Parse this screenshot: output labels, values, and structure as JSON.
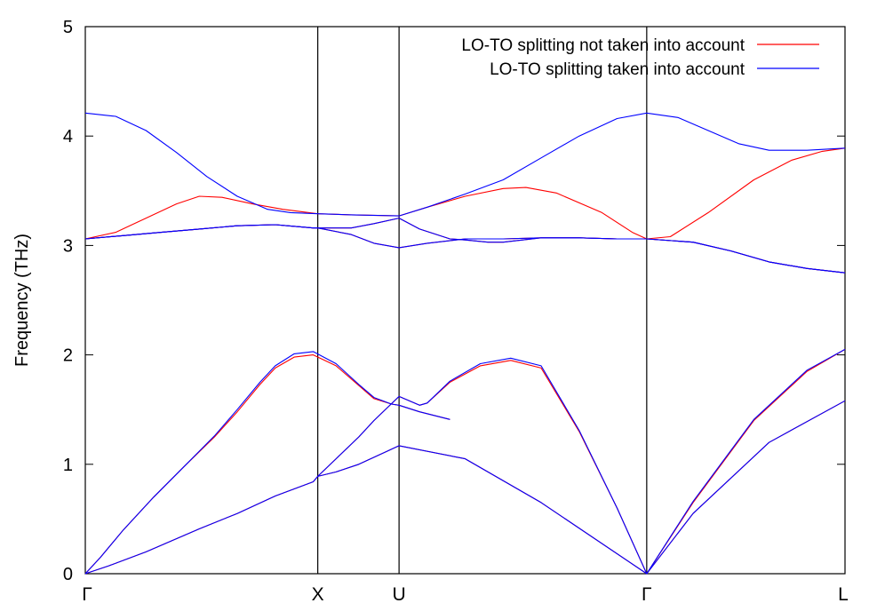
{
  "chart_data": {
    "type": "line",
    "title": "",
    "xlabel": "",
    "ylabel": "Frequency (THz)",
    "ylim": [
      0,
      5
    ],
    "yticks": [
      0,
      1,
      2,
      3,
      4,
      5
    ],
    "grid": false,
    "legend_position": "top-right",
    "x_axis_kind": "band path (fractional distance along the Brillouin-zone path)",
    "high_symmetry_points": [
      {
        "label": "Γ",
        "x": 0.0
      },
      {
        "label": "X",
        "x": 0.306
      },
      {
        "label": "U",
        "x": 0.413
      },
      {
        "label": "Γ",
        "x": 0.739
      },
      {
        "label": "L",
        "x": 1.0
      }
    ],
    "series": [
      {
        "name": "LO-TO splitting not taken into account",
        "color": "#ff0000",
        "bands": [
          [
            [
              0,
              0
            ],
            [
              0.03,
              0.07
            ],
            [
              0.08,
              0.2
            ],
            [
              0.15,
              0.41
            ],
            [
              0.2,
              0.55
            ],
            [
              0.25,
              0.71
            ],
            [
              0.3,
              0.84
            ],
            [
              0.306,
              0.89
            ],
            [
              0.33,
              0.93
            ],
            [
              0.36,
              1.0
            ],
            [
              0.413,
              1.17
            ],
            [
              0.5,
              1.05
            ],
            [
              0.6,
              0.65
            ],
            [
              0.739,
              0
            ],
            [
              0.8,
              0.55
            ],
            [
              0.9,
              1.2
            ],
            [
              1.0,
              1.58
            ]
          ],
          [
            [
              0,
              0
            ],
            [
              0.02,
              0.15
            ],
            [
              0.05,
              0.4
            ],
            [
              0.09,
              0.7
            ],
            [
              0.13,
              0.98
            ],
            [
              0.17,
              1.25
            ],
            [
              0.2,
              1.48
            ],
            [
              0.23,
              1.73
            ],
            [
              0.25,
              1.88
            ],
            [
              0.275,
              1.98
            ],
            [
              0.3,
              2.0
            ],
            [
              0.33,
              1.9
            ],
            [
              0.36,
              1.72
            ],
            [
              0.38,
              1.6
            ],
            [
              0.403,
              1.55
            ],
            [
              0.413,
              1.54
            ],
            [
              0.44,
              1.48
            ],
            [
              0.48,
              1.41
            ]
          ],
          [
            [
              0.306,
              0.89
            ],
            [
              0.33,
              1.05
            ],
            [
              0.36,
              1.25
            ],
            [
              0.38,
              1.4
            ],
            [
              0.413,
              1.62
            ],
            [
              0.44,
              1.54
            ],
            [
              0.45,
              1.56
            ],
            [
              0.48,
              1.75
            ],
            [
              0.52,
              1.9
            ],
            [
              0.56,
              1.95
            ],
            [
              0.6,
              1.88
            ],
            [
              0.65,
              1.3
            ],
            [
              0.7,
              0.6
            ],
            [
              0.739,
              0
            ],
            [
              0.8,
              0.65
            ],
            [
              0.88,
              1.4
            ],
            [
              0.95,
              1.85
            ],
            [
              1.0,
              2.05
            ]
          ],
          [
            [
              0,
              3.06
            ],
            [
              0.05,
              3.09
            ],
            [
              0.1,
              3.12
            ],
            [
              0.15,
              3.15
            ],
            [
              0.2,
              3.18
            ],
            [
              0.25,
              3.19
            ],
            [
              0.3,
              3.16
            ],
            [
              0.306,
              3.16
            ],
            [
              0.35,
              3.1
            ],
            [
              0.38,
              3.02
            ],
            [
              0.413,
              2.98
            ],
            [
              0.45,
              3.02
            ],
            [
              0.5,
              3.06
            ],
            [
              0.55,
              3.06
            ],
            [
              0.6,
              3.07
            ],
            [
              0.65,
              3.07
            ],
            [
              0.7,
              3.06
            ],
            [
              0.739,
              3.06
            ],
            [
              0.8,
              3.03
            ],
            [
              0.85,
              2.95
            ],
            [
              0.9,
              2.85
            ],
            [
              0.95,
              2.79
            ],
            [
              1.0,
              2.75
            ]
          ],
          [
            [
              0,
              3.06
            ],
            [
              0.05,
              3.09
            ],
            [
              0.1,
              3.12
            ],
            [
              0.15,
              3.15
            ],
            [
              0.2,
              3.18
            ],
            [
              0.25,
              3.19
            ],
            [
              0.3,
              3.16
            ],
            [
              0.306,
              3.16
            ],
            [
              0.35,
              3.16
            ],
            [
              0.38,
              3.2
            ],
            [
              0.413,
              3.25
            ],
            [
              0.44,
              3.15
            ],
            [
              0.48,
              3.06
            ],
            [
              0.5,
              3.05
            ],
            [
              0.53,
              3.03
            ],
            [
              0.55,
              3.03
            ],
            [
              0.6,
              3.07
            ],
            [
              0.65,
              3.07
            ],
            [
              0.7,
              3.06
            ],
            [
              0.739,
              3.06
            ],
            [
              0.8,
              3.03
            ],
            [
              0.85,
              2.95
            ],
            [
              0.9,
              2.85
            ],
            [
              0.95,
              2.79
            ],
            [
              1.0,
              2.75
            ]
          ],
          [
            [
              0,
              3.06
            ],
            [
              0.04,
              3.12
            ],
            [
              0.08,
              3.25
            ],
            [
              0.12,
              3.38
            ],
            [
              0.15,
              3.45
            ],
            [
              0.18,
              3.44
            ],
            [
              0.22,
              3.38
            ],
            [
              0.26,
              3.33
            ],
            [
              0.306,
              3.29
            ],
            [
              0.35,
              3.28
            ],
            [
              0.413,
              3.27
            ],
            [
              0.45,
              3.35
            ],
            [
              0.5,
              3.45
            ],
            [
              0.55,
              3.52
            ],
            [
              0.58,
              3.53
            ],
            [
              0.62,
              3.48
            ],
            [
              0.68,
              3.3
            ],
            [
              0.72,
              3.12
            ],
            [
              0.739,
              3.06
            ],
            [
              0.77,
              3.08
            ],
            [
              0.82,
              3.3
            ],
            [
              0.88,
              3.6
            ],
            [
              0.93,
              3.78
            ],
            [
              0.97,
              3.86
            ],
            [
              1.0,
              3.89
            ]
          ]
        ]
      },
      {
        "name": "LO-TO splitting taken into account",
        "color": "#0000ff",
        "bands": [
          [
            [
              0,
              0
            ],
            [
              0.03,
              0.07
            ],
            [
              0.08,
              0.2
            ],
            [
              0.15,
              0.41
            ],
            [
              0.2,
              0.55
            ],
            [
              0.25,
              0.71
            ],
            [
              0.3,
              0.84
            ],
            [
              0.306,
              0.89
            ],
            [
              0.33,
              0.93
            ],
            [
              0.36,
              1.0
            ],
            [
              0.413,
              1.17
            ],
            [
              0.5,
              1.05
            ],
            [
              0.6,
              0.65
            ],
            [
              0.739,
              0
            ],
            [
              0.8,
              0.55
            ],
            [
              0.9,
              1.2
            ],
            [
              1.0,
              1.58
            ]
          ],
          [
            [
              0,
              0
            ],
            [
              0.02,
              0.15
            ],
            [
              0.05,
              0.4
            ],
            [
              0.09,
              0.7
            ],
            [
              0.13,
              0.98
            ],
            [
              0.17,
              1.26
            ],
            [
              0.2,
              1.5
            ],
            [
              0.23,
              1.75
            ],
            [
              0.25,
              1.9
            ],
            [
              0.275,
              2.01
            ],
            [
              0.3,
              2.03
            ],
            [
              0.33,
              1.92
            ],
            [
              0.36,
              1.73
            ],
            [
              0.38,
              1.61
            ],
            [
              0.403,
              1.55
            ],
            [
              0.413,
              1.54
            ],
            [
              0.44,
              1.48
            ],
            [
              0.48,
              1.41
            ]
          ],
          [
            [
              0.306,
              0.89
            ],
            [
              0.33,
              1.05
            ],
            [
              0.36,
              1.25
            ],
            [
              0.38,
              1.4
            ],
            [
              0.413,
              1.62
            ],
            [
              0.44,
              1.54
            ],
            [
              0.45,
              1.56
            ],
            [
              0.48,
              1.76
            ],
            [
              0.52,
              1.92
            ],
            [
              0.56,
              1.97
            ],
            [
              0.6,
              1.9
            ],
            [
              0.65,
              1.31
            ],
            [
              0.7,
              0.6
            ],
            [
              0.739,
              0
            ],
            [
              0.8,
              0.66
            ],
            [
              0.88,
              1.41
            ],
            [
              0.95,
              1.86
            ],
            [
              1.0,
              2.05
            ]
          ],
          [
            [
              0,
              3.06
            ],
            [
              0.05,
              3.09
            ],
            [
              0.1,
              3.12
            ],
            [
              0.15,
              3.15
            ],
            [
              0.2,
              3.18
            ],
            [
              0.25,
              3.19
            ],
            [
              0.3,
              3.16
            ],
            [
              0.306,
              3.16
            ],
            [
              0.35,
              3.1
            ],
            [
              0.38,
              3.02
            ],
            [
              0.413,
              2.98
            ],
            [
              0.45,
              3.02
            ],
            [
              0.5,
              3.06
            ],
            [
              0.55,
              3.06
            ],
            [
              0.6,
              3.07
            ],
            [
              0.65,
              3.07
            ],
            [
              0.7,
              3.06
            ],
            [
              0.739,
              3.06
            ],
            [
              0.8,
              3.03
            ],
            [
              0.85,
              2.95
            ],
            [
              0.9,
              2.85
            ],
            [
              0.95,
              2.79
            ],
            [
              1.0,
              2.75
            ]
          ],
          [
            [
              0,
              3.06
            ],
            [
              0.05,
              3.09
            ],
            [
              0.1,
              3.12
            ],
            [
              0.15,
              3.15
            ],
            [
              0.2,
              3.18
            ],
            [
              0.25,
              3.19
            ],
            [
              0.3,
              3.16
            ],
            [
              0.306,
              3.16
            ],
            [
              0.35,
              3.16
            ],
            [
              0.38,
              3.2
            ],
            [
              0.413,
              3.25
            ],
            [
              0.44,
              3.15
            ],
            [
              0.48,
              3.06
            ],
            [
              0.5,
              3.05
            ],
            [
              0.53,
              3.03
            ],
            [
              0.55,
              3.03
            ],
            [
              0.6,
              3.07
            ],
            [
              0.65,
              3.07
            ],
            [
              0.7,
              3.06
            ],
            [
              0.739,
              3.06
            ],
            [
              0.8,
              3.03
            ],
            [
              0.85,
              2.95
            ],
            [
              0.9,
              2.85
            ],
            [
              0.95,
              2.79
            ],
            [
              1.0,
              2.75
            ]
          ],
          [
            [
              0,
              4.21
            ],
            [
              0.04,
              4.18
            ],
            [
              0.08,
              4.05
            ],
            [
              0.12,
              3.85
            ],
            [
              0.16,
              3.63
            ],
            [
              0.2,
              3.45
            ],
            [
              0.24,
              3.33
            ],
            [
              0.27,
              3.3
            ],
            [
              0.306,
              3.29
            ],
            [
              0.35,
              3.28
            ],
            [
              0.413,
              3.27
            ],
            [
              0.45,
              3.35
            ],
            [
              0.5,
              3.47
            ],
            [
              0.55,
              3.6
            ],
            [
              0.6,
              3.8
            ],
            [
              0.65,
              4.0
            ],
            [
              0.7,
              4.16
            ],
            [
              0.739,
              4.21
            ],
            [
              0.78,
              4.17
            ],
            [
              0.82,
              4.05
            ],
            [
              0.86,
              3.93
            ],
            [
              0.9,
              3.87
            ],
            [
              0.95,
              3.87
            ],
            [
              1.0,
              3.89
            ]
          ]
        ]
      }
    ]
  }
}
